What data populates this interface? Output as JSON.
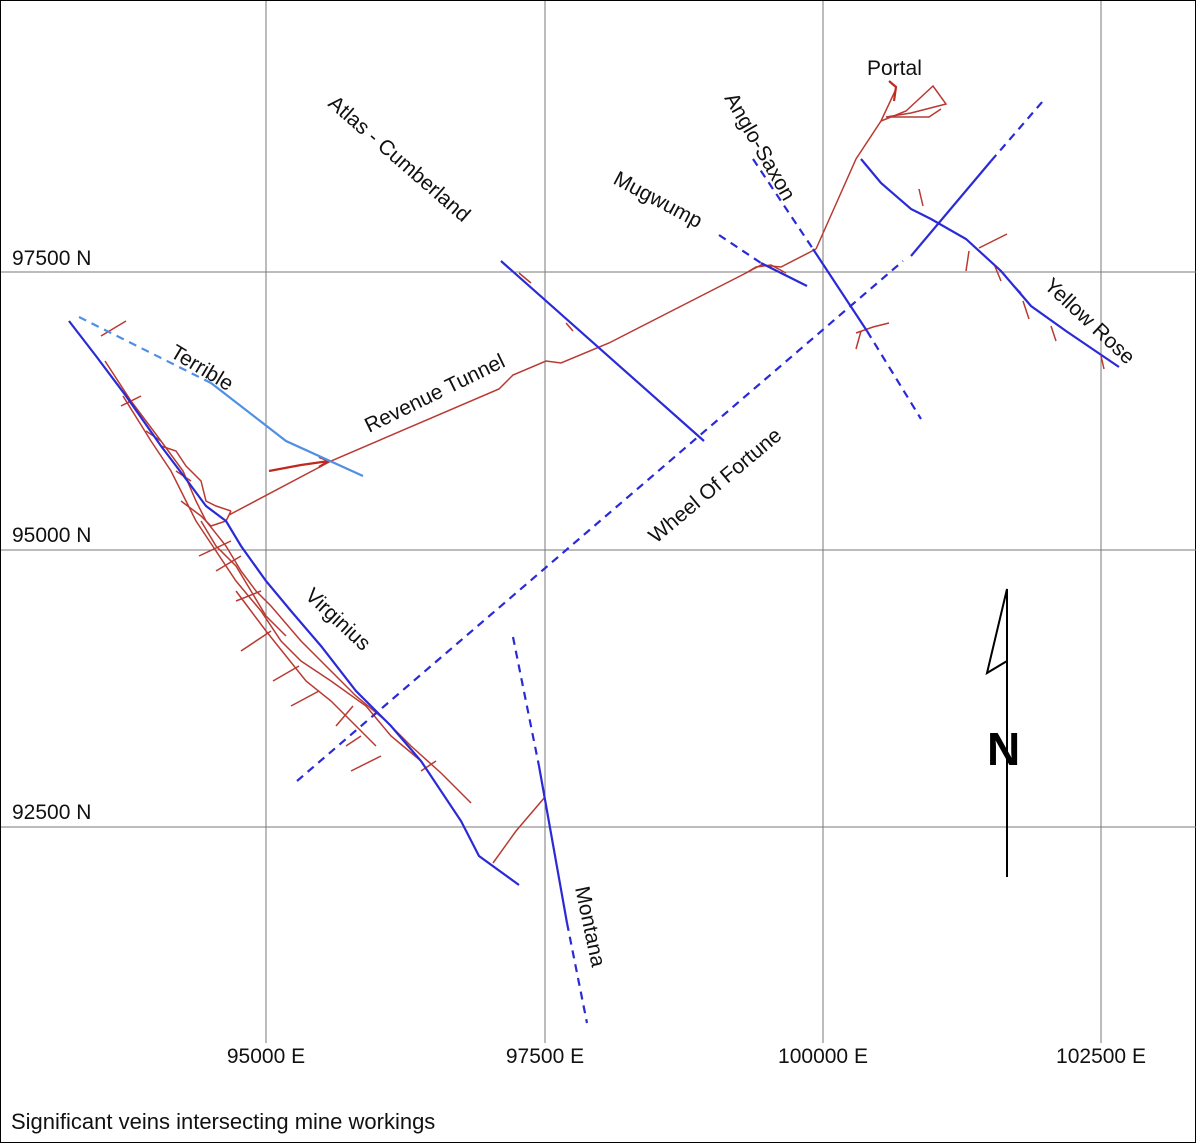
{
  "grid": {
    "eastings": [
      "95000 E",
      "97500 E",
      "100000 E",
      "102500 E"
    ],
    "northings": [
      "97500 N",
      "95000 N",
      "92500 N"
    ]
  },
  "veins": {
    "atlas_cumberland": "Atlas - Cumberland",
    "anglo_saxon": "Anglo-Saxon",
    "mugwump": "Mugwump",
    "terrible": "Terrible",
    "virginius": "Virginius",
    "wheel_of_fortune": "Wheel Of Fortune",
    "yellow_rose": "Yellow Rose",
    "montana": "Montana"
  },
  "workings": {
    "portal": "Portal",
    "revenue_tunnel": "Revenue Tunnel"
  },
  "north_arrow": {
    "label": "N"
  },
  "caption": "Significant veins intersecting mine workings",
  "colors": {
    "vein": "#2a2ad6",
    "vein_light": "#4f8fe6",
    "workings": "#b83a32",
    "grid": "#7a7a7a"
  }
}
